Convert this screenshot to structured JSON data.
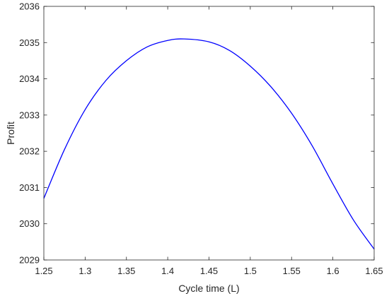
{
  "chart_data": {
    "type": "line",
    "title": "",
    "xlabel": "Cycle time (L)",
    "ylabel": "Profit",
    "xlim": [
      1.25,
      1.65
    ],
    "ylim": [
      2029,
      2036
    ],
    "xticks": [
      1.25,
      1.3,
      1.35,
      1.4,
      1.45,
      1.5,
      1.55,
      1.6,
      1.65
    ],
    "xtick_labels": [
      "1.25",
      "1.3",
      "1.35",
      "1.4",
      "1.45",
      "1.5",
      "1.55",
      "1.6",
      "1.65"
    ],
    "yticks": [
      2029,
      2030,
      2031,
      2032,
      2033,
      2034,
      2035,
      2036
    ],
    "ytick_labels": [
      "2029",
      "2030",
      "2031",
      "2032",
      "2033",
      "2034",
      "2035",
      "2036"
    ],
    "grid": false,
    "legend": "none",
    "series": [
      {
        "color": "#0000ff",
        "x": [
          1.25,
          1.275,
          1.3,
          1.325,
          1.35,
          1.375,
          1.4,
          1.42,
          1.45,
          1.475,
          1.5,
          1.525,
          1.55,
          1.575,
          1.6,
          1.625,
          1.65
        ],
        "y": [
          2030.7,
          2032.05,
          2033.15,
          2033.95,
          2034.5,
          2034.88,
          2035.06,
          2035.1,
          2035.02,
          2034.78,
          2034.35,
          2033.78,
          2033.05,
          2032.15,
          2031.1,
          2030.1,
          2029.3
        ]
      }
    ]
  }
}
